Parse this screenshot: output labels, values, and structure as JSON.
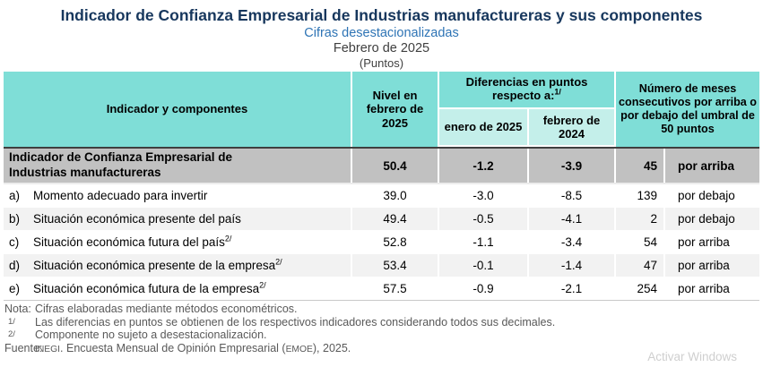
{
  "header": {
    "title": "Indicador de Confianza Empresarial de Industrias manufactureras y sus componentes",
    "subtitle": "Cifras desestacionalizadas",
    "period": "Febrero de 2025",
    "units": "(Puntos)"
  },
  "table": {
    "header": {
      "indicator": "Indicador y componentes",
      "level": "Nivel en febrero de 2025",
      "differences": "Diferencias en puntos respecto a:",
      "differences_footnote": "1/",
      "diff_enero": "enero de 2025",
      "diff_febrero": "febrero de 2024",
      "months": "Número de meses consecutivos por arriba o por debajo del umbral de 50 puntos"
    },
    "main_row": {
      "label": "Indicador de Confianza Empresarial de Industrias manufactureras",
      "level": "50.4",
      "diff_enero": "-1.2",
      "diff_febrero": "-3.9",
      "months": "45",
      "position": "por arriba"
    },
    "rows": [
      {
        "prefix": "a)",
        "label": "Momento adecuado para invertir",
        "footnote": "",
        "level": "39.0",
        "diff_enero": "-3.0",
        "diff_febrero": "-8.5",
        "months": "139",
        "position": "por debajo"
      },
      {
        "prefix": "b)",
        "label": "Situación económica presente del país",
        "footnote": "",
        "level": "49.4",
        "diff_enero": "-0.5",
        "diff_febrero": "-4.1",
        "months": "2",
        "position": "por debajo"
      },
      {
        "prefix": "c)",
        "label": "Situación económica futura del país",
        "footnote": "2/",
        "level": "52.8",
        "diff_enero": "-1.1",
        "diff_febrero": "-3.4",
        "months": "54",
        "position": "por arriba"
      },
      {
        "prefix": "d)",
        "label": "Situación económica presente de la empresa",
        "footnote": "2/",
        "level": "53.4",
        "diff_enero": "-0.1",
        "diff_febrero": "-1.4",
        "months": "47",
        "position": "por arriba"
      },
      {
        "prefix": "e)",
        "label": "Situación económica futura de la empresa",
        "footnote": "2/",
        "level": "57.5",
        "diff_enero": "-0.9",
        "diff_febrero": "-2.1",
        "months": "254",
        "position": "por arriba"
      }
    ]
  },
  "notes": {
    "nota_label": "Nota:",
    "nota_text": "Cifras elaboradas mediante métodos econométricos.",
    "fn1_marker": "1/",
    "fn1_text": "Las diferencias en puntos se obtienen de los respectivos indicadores considerando todos sus decimales.",
    "fn2_marker": "2/",
    "fn2_text": "Componente no sujeto a desestacionalización.",
    "source_label": "Fuente:",
    "source_org": "INEGI",
    "source_mid": ". Encuesta Mensual de Opinión Empresarial (",
    "source_acronym": "EMOE",
    "source_end": "), 2025."
  },
  "watermark": "Activar Windows",
  "colors": {
    "title_navy": "#17375D",
    "subtitle_blue": "#2E74B5",
    "header_teal": "#7FDED7",
    "subheader_teal": "#C4EFEA",
    "main_row_gray": "#C1C1C1",
    "alt_row_gray": "#F2F2F2",
    "notes_gray": "#595959"
  }
}
